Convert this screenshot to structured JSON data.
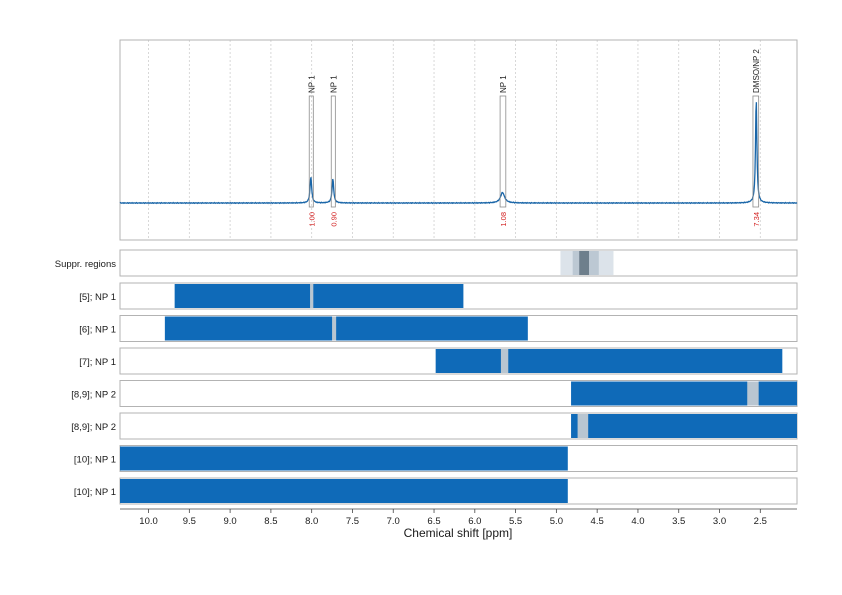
{
  "chart_data": {
    "type": "nmr-spectrum",
    "xlabel": "Chemical shift [ppm]",
    "xlim": [
      10.35,
      2.05
    ],
    "x_reversed": true,
    "xticks": [
      10.0,
      9.5,
      9.0,
      8.5,
      8.0,
      7.5,
      7.0,
      6.5,
      6.0,
      5.5,
      5.0,
      4.5,
      4.0,
      3.5,
      3.0,
      2.5
    ],
    "tick_labels": [
      "10.0",
      "9.5",
      "9.0",
      "8.5",
      "8.0",
      "7.5",
      "7.0",
      "6.5",
      "6.0",
      "5.5",
      "5.0",
      "4.5",
      "4.0",
      "3.5",
      "3.0",
      "2.5"
    ],
    "grid": true,
    "spectrum_color": "#1a66a8",
    "peaks": [
      {
        "ppm": 8.01,
        "height": 0.25,
        "width": 0.012,
        "label": "NP 1",
        "integral": "1.00"
      },
      {
        "ppm": 7.74,
        "height": 0.23,
        "width": 0.012,
        "label": "NP 1",
        "integral": "0.90"
      },
      {
        "ppm": 5.66,
        "height": 0.1,
        "width": 0.03,
        "label": "NP 1",
        "integral": "1.08"
      },
      {
        "ppm": 2.55,
        "height": 1.0,
        "width": 0.01,
        "label": "DMSO/NP 2",
        "integral": "7.34"
      }
    ],
    "peak_boxes": [
      {
        "start": 8.03,
        "end": 7.98
      },
      {
        "start": 7.76,
        "end": 7.71
      },
      {
        "start": 5.69,
        "end": 5.62
      },
      {
        "start": 2.59,
        "end": 2.52
      }
    ],
    "integral_color": "#d21f1f",
    "suppression": {
      "label": "Suppr. regions",
      "bands": [
        {
          "start": 4.95,
          "end": 4.3,
          "color": "#dce3ea"
        },
        {
          "start": 4.8,
          "end": 4.48,
          "color": "#bcc8d3"
        },
        {
          "start": 4.72,
          "end": 4.6,
          "color": "#6e7f8c"
        }
      ]
    },
    "rows": [
      {
        "label": "[5]; NP 1",
        "bars": [
          {
            "start": 9.68,
            "end": 6.14
          }
        ],
        "gaps": [
          {
            "start": 8.02,
            "end": 7.98
          }
        ]
      },
      {
        "label": "[6]; NP 1",
        "bars": [
          {
            "start": 9.8,
            "end": 5.35
          }
        ],
        "gaps": [
          {
            "start": 7.75,
            "end": 7.7
          }
        ]
      },
      {
        "label": "[7]; NP 1",
        "bars": [
          {
            "start": 6.48,
            "end": 2.23
          }
        ],
        "gaps": [
          {
            "start": 5.68,
            "end": 5.59
          }
        ]
      },
      {
        "label": "[8,9]; NP 2",
        "bars": [
          {
            "start": 4.82,
            "end": 2.05
          }
        ],
        "gaps": [
          {
            "start": 2.66,
            "end": 2.52
          }
        ]
      },
      {
        "label": "[8,9]; NP 2",
        "bars": [
          {
            "start": 4.82,
            "end": 2.05
          }
        ],
        "gaps": [
          {
            "start": 4.74,
            "end": 4.61
          }
        ]
      },
      {
        "label": "[10]; NP 1",
        "bars": [
          {
            "start": 10.35,
            "end": 4.86
          }
        ],
        "gaps": []
      },
      {
        "label": "[10]; NP 1",
        "bars": [
          {
            "start": 10.35,
            "end": 4.86
          }
        ],
        "gaps": []
      }
    ],
    "bar_color": "#0f6ab8",
    "gap_color": "#b9c6d1"
  }
}
